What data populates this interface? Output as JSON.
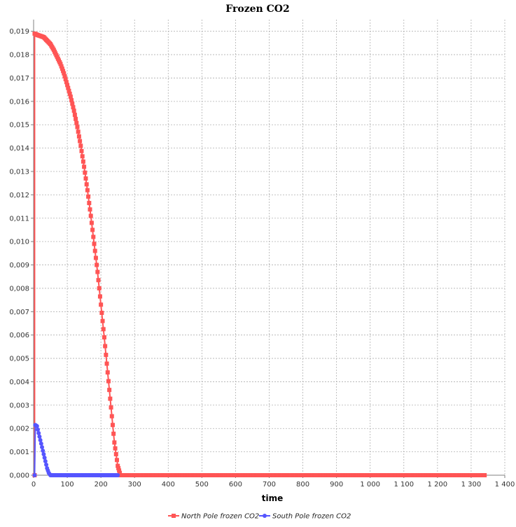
{
  "chart_data": {
    "type": "line",
    "title": "Frozen CO2",
    "xlabel": "time",
    "ylabel": "",
    "xlim": [
      0,
      1400
    ],
    "ylim": [
      0,
      0.0195
    ],
    "x_ticks": [
      0,
      100,
      200,
      300,
      400,
      500,
      600,
      700,
      800,
      900,
      1000,
      1100,
      1200,
      1300,
      1400
    ],
    "x_tick_labels": [
      "0",
      "100",
      "200",
      "300",
      "400",
      "500",
      "600",
      "700",
      "800",
      "900",
      "1 000",
      "1 100",
      "1 200",
      "1 300",
      "1 400"
    ],
    "y_ticks": [
      0,
      0.001,
      0.002,
      0.003,
      0.004,
      0.005,
      0.006,
      0.007,
      0.008,
      0.009,
      0.01,
      0.011,
      0.012,
      0.013,
      0.014,
      0.015,
      0.016,
      0.017,
      0.018,
      0.019
    ],
    "y_tick_labels": [
      "0,000",
      "0,001",
      "0,002",
      "0,003",
      "0,004",
      "0,005",
      "0,006",
      "0,007",
      "0,008",
      "0,009",
      "0,010",
      "0,011",
      "0,012",
      "0,013",
      "0,014",
      "0,015",
      "0,016",
      "0,017",
      "0,018",
      "0,019"
    ],
    "grid": true,
    "legend_position": "bottom",
    "series": [
      {
        "name": "North Pole frozen CO2",
        "color": "#ff5555",
        "marker": "square",
        "x": [
          3,
          3,
          10,
          20,
          30,
          40,
          50,
          60,
          70,
          80,
          90,
          100,
          110,
          120,
          130,
          140,
          150,
          160,
          170,
          180,
          190,
          200,
          210,
          220,
          230,
          240,
          250,
          258,
          260,
          300,
          400,
          500,
          600,
          700,
          800,
          900,
          1000,
          1100,
          1200,
          1300,
          1340
        ],
        "y": [
          0.0,
          0.0189,
          0.01885,
          0.0188,
          0.01875,
          0.0186,
          0.01845,
          0.0182,
          0.0179,
          0.0176,
          0.0172,
          0.0167,
          0.0162,
          0.0156,
          0.0149,
          0.0141,
          0.0132,
          0.0122,
          0.0111,
          0.0099,
          0.0087,
          0.0073,
          0.0059,
          0.0044,
          0.0029,
          0.0014,
          0.0004,
          0.0,
          0.0,
          0.0,
          0.0,
          0.0,
          0.0,
          0.0,
          0.0,
          0.0,
          0.0,
          0.0,
          0.0,
          0.0,
          0.0
        ]
      },
      {
        "name": "South Pole frozen CO2",
        "color": "#5555ff",
        "marker": "circle",
        "x": [
          3,
          5,
          10,
          15,
          20,
          25,
          30,
          35,
          40,
          45,
          50,
          100,
          150,
          200,
          250
        ],
        "y": [
          0.0,
          0.00215,
          0.0021,
          0.0018,
          0.0015,
          0.0012,
          0.0009,
          0.0006,
          0.0003,
          0.0001,
          0.0,
          0.0,
          0.0,
          0.0,
          0.0
        ]
      }
    ]
  }
}
